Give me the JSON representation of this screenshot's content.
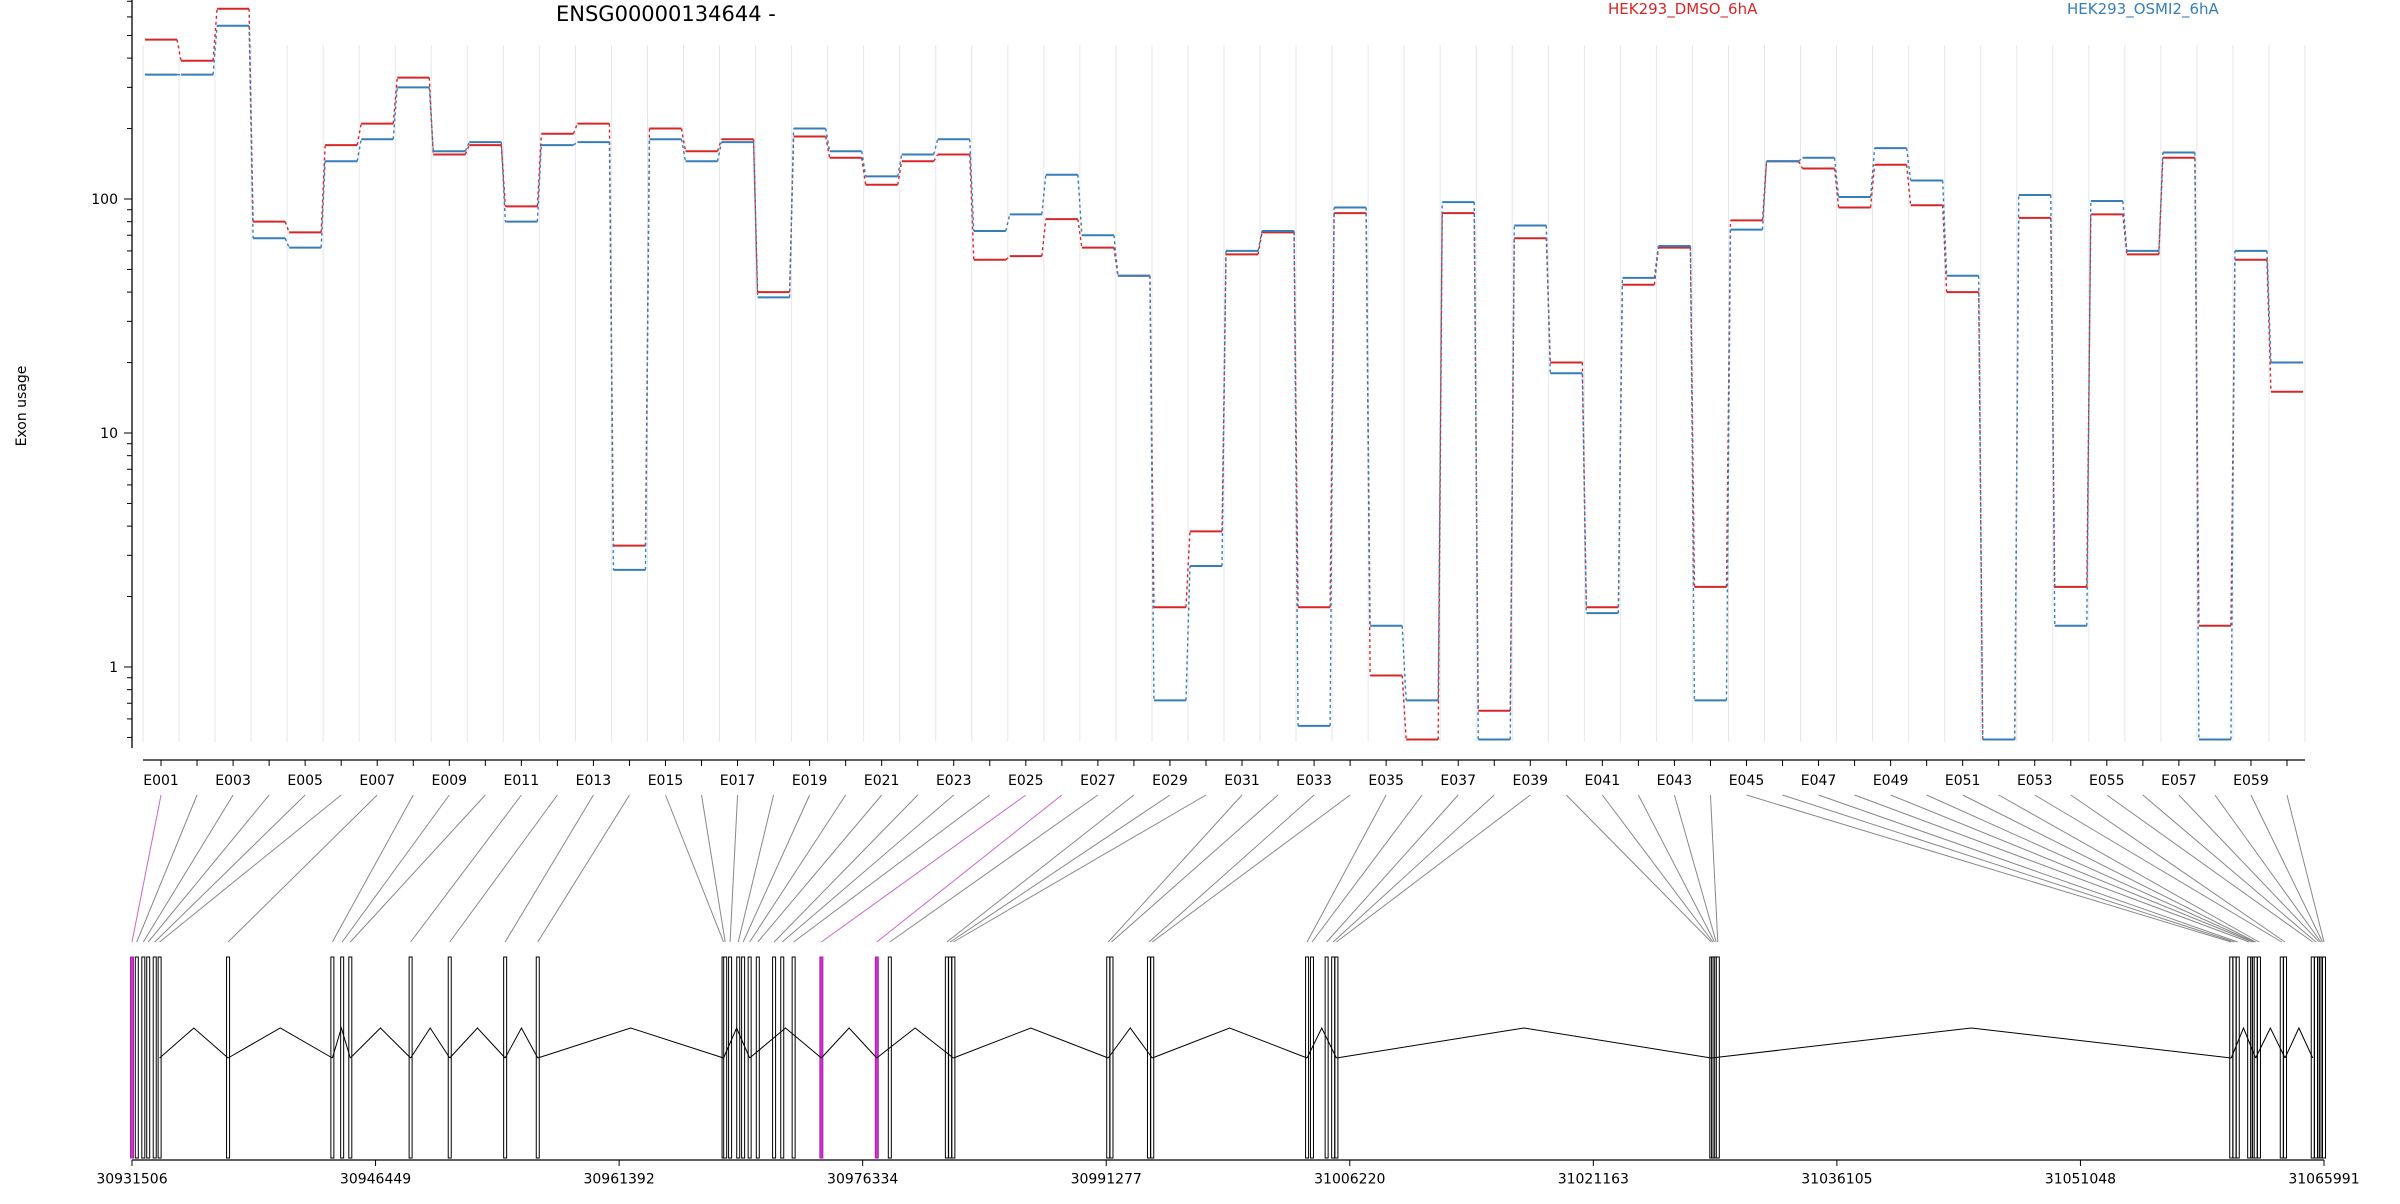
{
  "chart_data": {
    "type": "line",
    "title": "ENSG00000134644 -",
    "ylabel": "Exon usage",
    "yscale": "log",
    "yticks": [
      1,
      10,
      100
    ],
    "ylim": [
      0.45,
      850
    ],
    "categories": [
      "E001",
      "E002",
      "E003",
      "E004",
      "E005",
      "E006",
      "E007",
      "E008",
      "E009",
      "E010",
      "E011",
      "E012",
      "E013",
      "E014",
      "E015",
      "E016",
      "E017",
      "E018",
      "E019",
      "E020",
      "E021",
      "E022",
      "E023",
      "E024",
      "E025",
      "E026",
      "E027",
      "E028",
      "E029",
      "E030",
      "E031",
      "E032",
      "E033",
      "E034",
      "E035",
      "E036",
      "E037",
      "E038",
      "E039",
      "E040",
      "E041",
      "E042",
      "E043",
      "E044",
      "E045",
      "E046",
      "E047",
      "E048",
      "E049",
      "E050",
      "E051",
      "E052",
      "E053",
      "E054",
      "E055",
      "E056",
      "E057",
      "E058",
      "E059",
      "E060"
    ],
    "xtick_labels": [
      "E001",
      "E003",
      "E005",
      "E007",
      "E009",
      "E011",
      "E013",
      "E015",
      "E017",
      "E019",
      "E021",
      "E023",
      "E025",
      "E027",
      "E029",
      "E031",
      "E033",
      "E035",
      "E037",
      "E039",
      "E041",
      "E043",
      "E045",
      "E047",
      "E049",
      "E051",
      "E053",
      "E055",
      "E057",
      "E059"
    ],
    "series": [
      {
        "name": "HEK293_DMSO_6hA",
        "color": "#d62728",
        "values": [
          480,
          390,
          650,
          80,
          72,
          170,
          210,
          330,
          155,
          170,
          93,
          190,
          210,
          3.3,
          200,
          160,
          180,
          40,
          185,
          150,
          115,
          145,
          155,
          55,
          57,
          82,
          62,
          47,
          1.8,
          3.8,
          58,
          72,
          1.8,
          87,
          0.92,
          0.49,
          87,
          0.65,
          68,
          20,
          1.8,
          43,
          62,
          2.2,
          81,
          145,
          135,
          92,
          140,
          94,
          40,
          0.49,
          83,
          2.2,
          86,
          58,
          150,
          1.5,
          55,
          15
        ]
      },
      {
        "name": "HEK293_OSMI2_6hA",
        "color": "#377eb8",
        "values": [
          340,
          340,
          550,
          68,
          62,
          145,
          180,
          300,
          160,
          175,
          80,
          170,
          175,
          2.6,
          180,
          145,
          175,
          38,
          200,
          160,
          125,
          155,
          180,
          73,
          86,
          127,
          70,
          47,
          0.72,
          2.7,
          60,
          73,
          0.56,
          92,
          1.5,
          0.72,
          97,
          0.49,
          77,
          18,
          1.7,
          46,
          63,
          0.72,
          74,
          145,
          150,
          102,
          165,
          120,
          47,
          0.49,
          104,
          1.5,
          98,
          60,
          158,
          0.49,
          60,
          20
        ]
      }
    ],
    "genomic_ticks": [
      "30931506",
      "30946449",
      "30961392",
      "30976334",
      "30991277",
      "31006220",
      "31021163",
      "31036105",
      "31051048",
      "31065991"
    ],
    "genomic_range": [
      30931506,
      31065991
    ],
    "highlighted_exons": [
      "E001",
      "E025",
      "E026"
    ],
    "grid": "vertical",
    "legend": "top"
  }
}
